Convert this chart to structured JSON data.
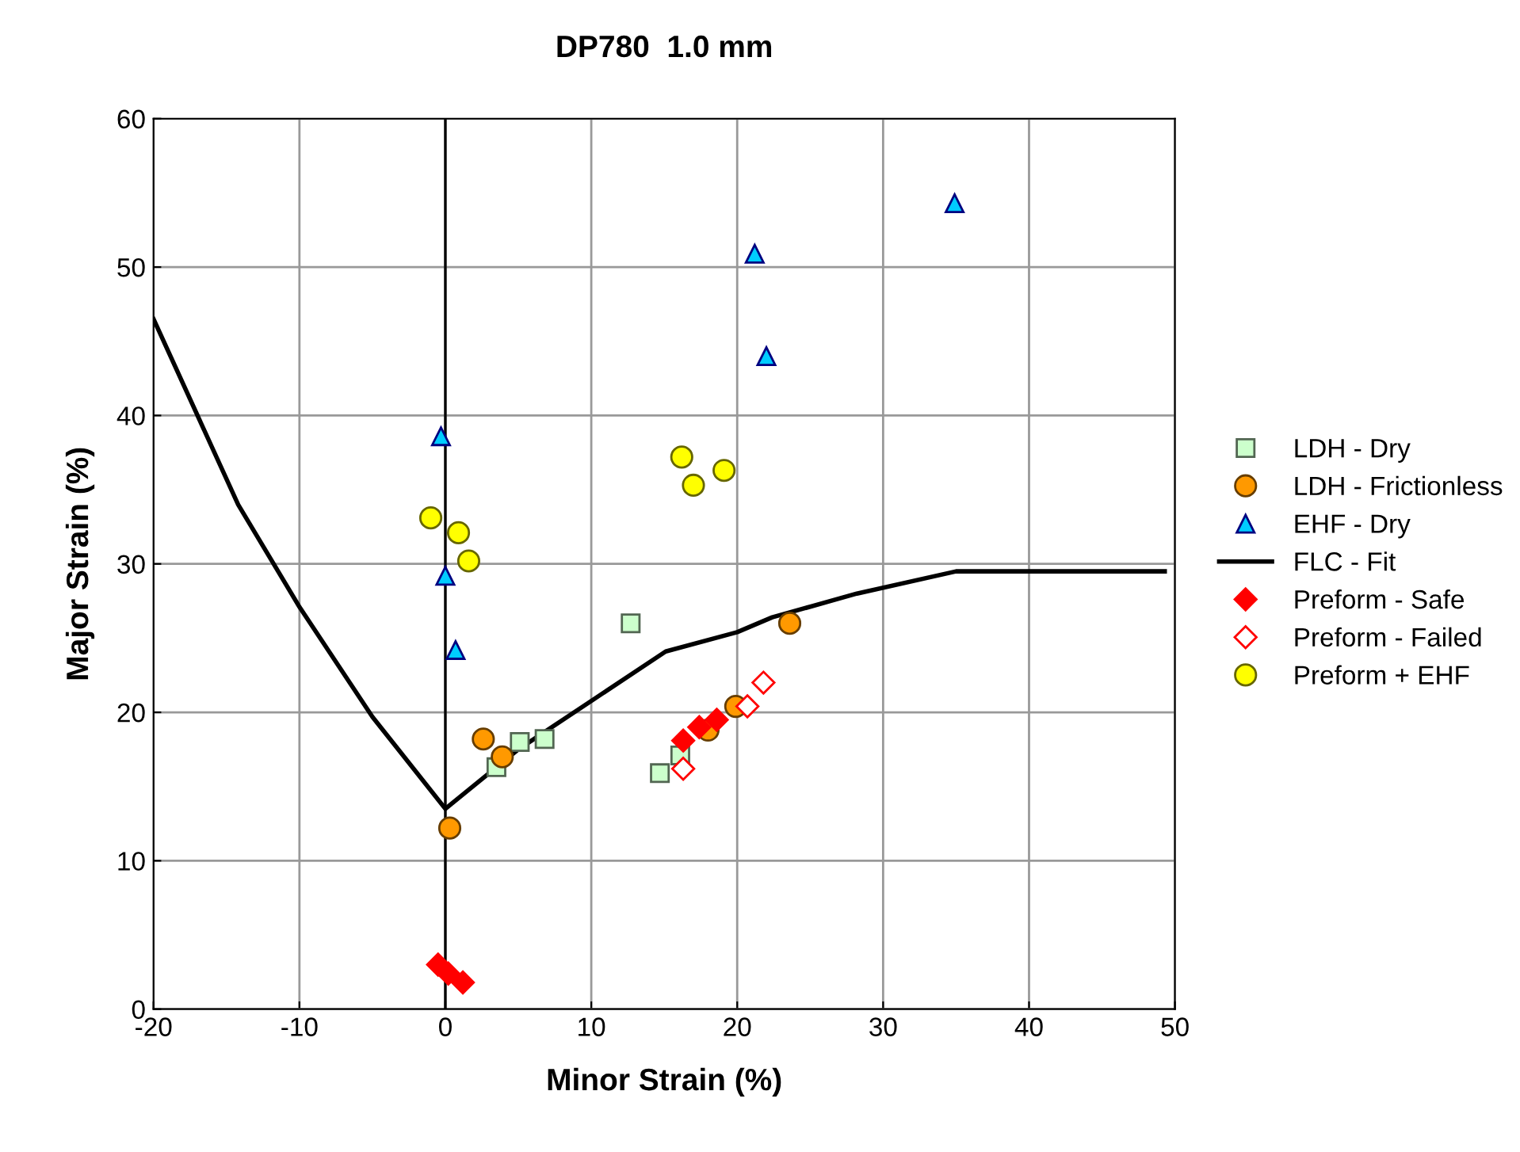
{
  "chart_data": {
    "type": "scatter",
    "title": "DP780  1.0 mm",
    "xlabel": "Minor Strain (%)",
    "ylabel": "Major Strain (%)",
    "xlim": [
      -20,
      50
    ],
    "ylim": [
      0,
      60
    ],
    "xticks": [
      -20,
      -10,
      0,
      10,
      20,
      30,
      40,
      50
    ],
    "yticks": [
      0,
      10,
      20,
      30,
      40,
      50,
      60
    ],
    "grid": true,
    "legend": "right",
    "ref_lines": [
      {
        "axis": "x",
        "value": 0,
        "color": "#000000"
      }
    ],
    "series": [
      {
        "name": "LDH - Dry",
        "marker": "square",
        "color": "#ccffcc",
        "x": [
          3.5,
          5.1,
          6.8,
          12.7,
          14.7,
          16.1
        ],
        "values": [
          16.3,
          18.0,
          18.2,
          26.0,
          15.9,
          17.1
        ]
      },
      {
        "name": "LDH - Frictionless",
        "marker": "circle",
        "color": "#ff9900",
        "x": [
          0.3,
          2.6,
          3.9,
          18.0,
          19.9,
          23.6
        ],
        "values": [
          12.2,
          18.2,
          17.0,
          18.8,
          20.4,
          26.0
        ]
      },
      {
        "name": "EHF - Dry",
        "marker": "triangle",
        "color": "#00ccff",
        "x": [
          -0.3,
          0.0,
          0.7,
          21.2,
          22.0,
          34.9
        ],
        "values": [
          38.6,
          29.2,
          24.2,
          50.9,
          44.0,
          54.3
        ]
      },
      {
        "name": "FLC - Fit",
        "type": "line",
        "marker": "none",
        "line_style": "solid",
        "color": "#000000",
        "x": [
          -20,
          -14.2,
          -10,
          -5.0,
          0,
          5,
          10.2,
          15.1,
          20,
          22.4,
          28.2,
          35,
          49.3
        ],
        "values": [
          46.5,
          34.0,
          27.1,
          19.7,
          13.5,
          17.5,
          20.9,
          24.1,
          25.4,
          26.4,
          28.0,
          29.5,
          29.5
        ]
      },
      {
        "name": "Preform - Safe",
        "marker": "diamond",
        "color": "#ff0000",
        "x": [
          -0.5,
          0.2,
          1.2,
          16.3,
          17.4,
          18.6
        ],
        "values": [
          3.0,
          2.4,
          1.8,
          18.1,
          19.0,
          19.5
        ]
      },
      {
        "name": "Preform - Failed",
        "marker": "diamond",
        "color": "#ff0000",
        "x": [
          16.3,
          20.7,
          21.8
        ],
        "values": [
          16.2,
          20.4,
          22.0
        ]
      },
      {
        "name": "Preform + EHF",
        "marker": "circle",
        "color": "#ffff00",
        "x": [
          -1.0,
          0.9,
          1.6,
          16.2,
          17.0,
          19.1
        ],
        "values": [
          33.1,
          32.1,
          30.2,
          37.2,
          35.3,
          36.3
        ]
      }
    ]
  }
}
